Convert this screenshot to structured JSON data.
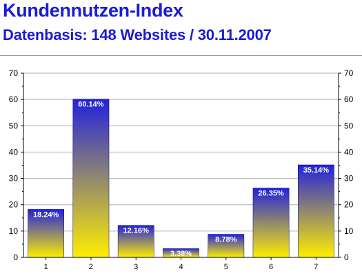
{
  "chart_data": {
    "type": "bar",
    "title": "Kundennutzen-Index",
    "subtitle": "Datenbasis: 148 Websites / 30.11.2007",
    "categories": [
      "1",
      "2",
      "3",
      "4",
      "5",
      "6",
      "7"
    ],
    "values": [
      18.24,
      60.14,
      12.16,
      3.38,
      8.78,
      26.35,
      35.14
    ],
    "data_labels": [
      "18.24%",
      "60.14%",
      "12.16%",
      "3.38%",
      "8.78%",
      "26.35%",
      "35.14%"
    ],
    "ylim": [
      0,
      70
    ],
    "yticks": [
      0,
      10,
      20,
      30,
      40,
      50,
      60,
      70
    ],
    "grid": true,
    "legend": "none",
    "colors": {
      "bar_top": "#2222dd",
      "bar_bottom": "#ffee00",
      "grid": "#b0b0b0",
      "axis": "#000000"
    }
  }
}
